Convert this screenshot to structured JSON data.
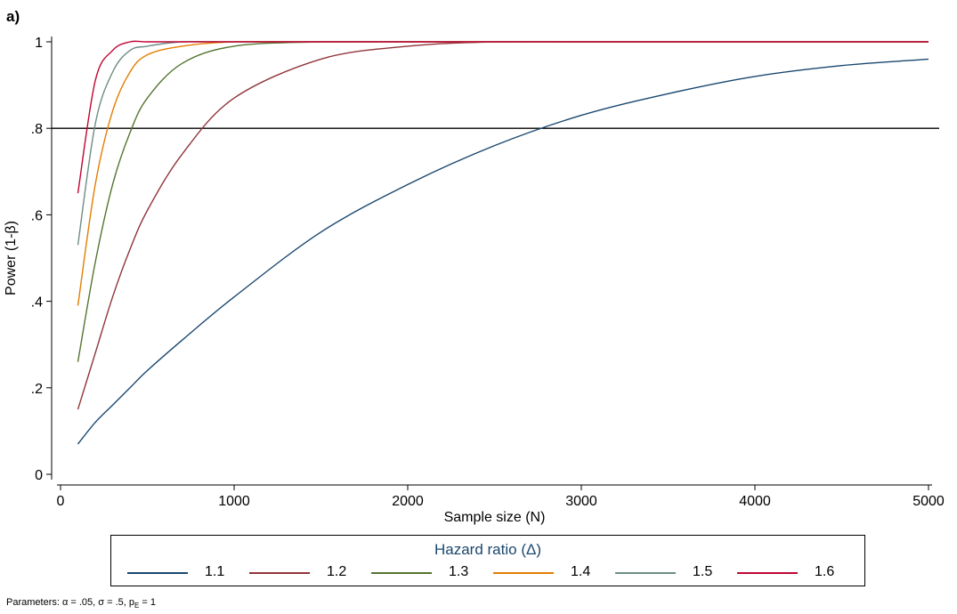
{
  "panel_label": "a)",
  "chart_data": {
    "type": "line",
    "title": "",
    "xlabel": "Sample size (N)",
    "ylabel": "Power (1-β)",
    "xlim": [
      0,
      5000
    ],
    "ylim": [
      0,
      1
    ],
    "xticks": [
      0,
      1000,
      2000,
      3000,
      4000,
      5000
    ],
    "xtick_labels": [
      "0",
      "1000",
      "2000",
      "3000",
      "4000",
      "5000"
    ],
    "yticks": [
      0,
      0.2,
      0.4,
      0.6,
      0.8,
      1
    ],
    "ytick_labels": [
      "0",
      ".2",
      ".4",
      ".6",
      ".8",
      "1"
    ],
    "grid": false,
    "reference_line": {
      "y": 0.8
    },
    "x": [
      100,
      200,
      300,
      400,
      500,
      700,
      1000,
      1500,
      2000,
      2500,
      3000,
      3500,
      4000,
      4500,
      5000
    ],
    "series": [
      {
        "name": "1.1",
        "color": "#1a476f",
        "values": [
          0.07,
          0.12,
          0.16,
          0.2,
          0.24,
          0.31,
          0.41,
          0.56,
          0.67,
          0.76,
          0.83,
          0.88,
          0.92,
          0.945,
          0.96
        ]
      },
      {
        "name": "1.2",
        "color": "#90353b",
        "values": [
          0.15,
          0.28,
          0.41,
          0.52,
          0.61,
          0.74,
          0.87,
          0.96,
          0.99,
          1.0,
          1.0,
          1.0,
          1.0,
          1.0,
          1.0
        ]
      },
      {
        "name": "1.3",
        "color": "#55752f",
        "values": [
          0.26,
          0.49,
          0.67,
          0.79,
          0.87,
          0.95,
          0.99,
          1.0,
          1.0,
          1.0,
          1.0,
          1.0,
          1.0,
          1.0,
          1.0
        ]
      },
      {
        "name": "1.4",
        "color": "#e37e00",
        "values": [
          0.39,
          0.67,
          0.84,
          0.93,
          0.97,
          0.99,
          1.0,
          1.0,
          1.0,
          1.0,
          1.0,
          1.0,
          1.0,
          1.0,
          1.0
        ]
      },
      {
        "name": "1.5",
        "color": "#6e8e84",
        "values": [
          0.53,
          0.81,
          0.93,
          0.98,
          0.99,
          1.0,
          1.0,
          1.0,
          1.0,
          1.0,
          1.0,
          1.0,
          1.0,
          1.0,
          1.0
        ]
      },
      {
        "name": "1.6",
        "color": "#c10534",
        "values": [
          0.65,
          0.91,
          0.98,
          1.0,
          1.0,
          1.0,
          1.0,
          1.0,
          1.0,
          1.0,
          1.0,
          1.0,
          1.0,
          1.0,
          1.0
        ]
      }
    ],
    "legend": {
      "title": "Hazard ratio (Δ)",
      "placement": "bottom"
    }
  },
  "footnote": "Parameters: α = .05, σ = .5, pE = 1"
}
